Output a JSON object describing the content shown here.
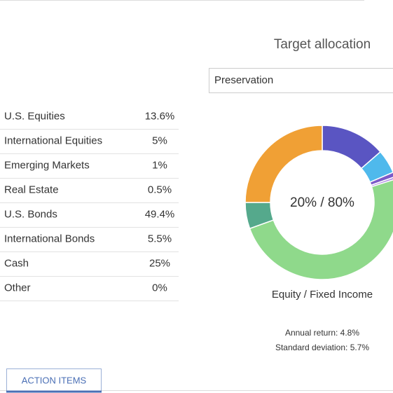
{
  "title": "Target allocation",
  "select": "Preservation",
  "stats": {
    "annual_return": "Annual return: 4.8%",
    "standard_deviation": "Standard deviation: 5.7%"
  },
  "button": "ACTION ITEMS",
  "chart_data": {
    "type": "pie",
    "center_label": "20% / 80%",
    "caption": "Equity / Fixed Income",
    "categories": [
      "U.S. Equities",
      "International Equities",
      "Emerging Markets",
      "Real Estate",
      "U.S. Bonds",
      "International Bonds",
      "Cash",
      "Other"
    ],
    "values": [
      13.6,
      5,
      1,
      0.5,
      49.4,
      5.5,
      25,
      0
    ],
    "value_labels": [
      "13.6%",
      "5%",
      "1%",
      "0.5%",
      "49.4%",
      "5.5%",
      "25%",
      "0%"
    ],
    "colors": [
      "#5a55c2",
      "#4fb9ec",
      "#7c5ac8",
      "#b28ee6",
      "#8fd98b",
      "#55a98c",
      "#f0a035",
      "#bbbbbb"
    ]
  }
}
